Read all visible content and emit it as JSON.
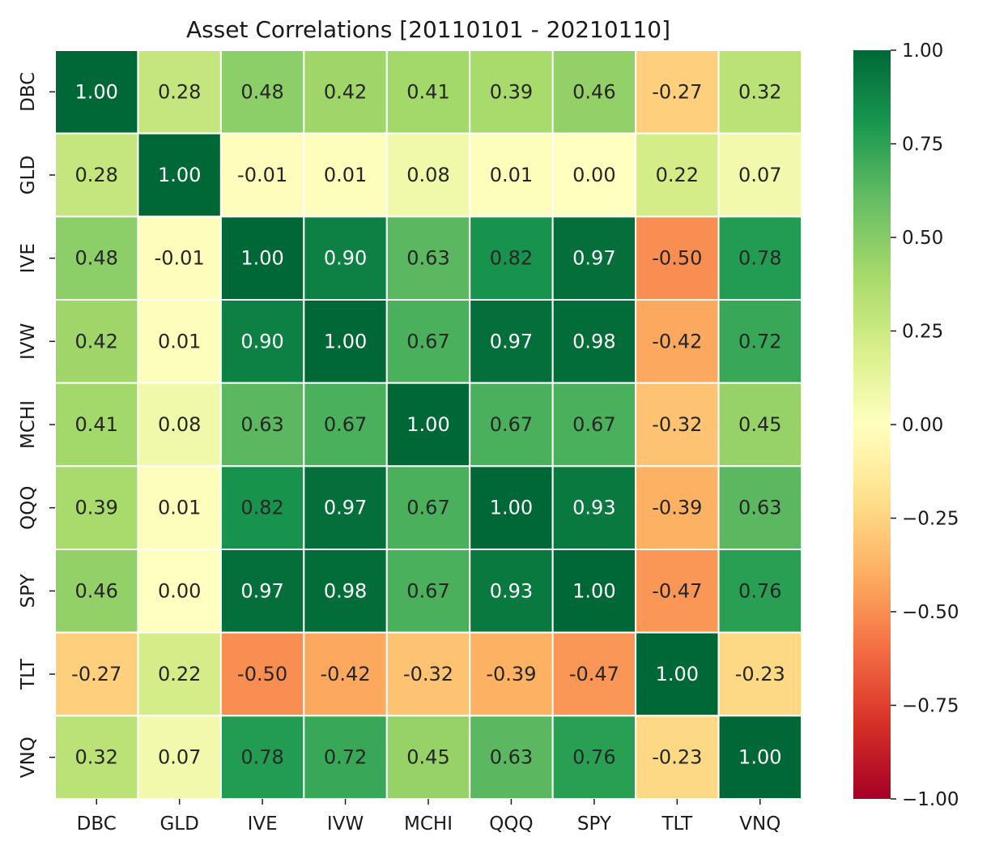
{
  "chart_data": {
    "type": "heatmap",
    "title": "Asset Correlations [20110101 - 20210110]",
    "x_labels": [
      "DBC",
      "GLD",
      "IVE",
      "IVW",
      "MCHI",
      "QQQ",
      "SPY",
      "TLT",
      "VNQ"
    ],
    "y_labels": [
      "DBC",
      "GLD",
      "IVE",
      "IVW",
      "MCHI",
      "QQQ",
      "SPY",
      "TLT",
      "VNQ"
    ],
    "values": [
      [
        1.0,
        0.28,
        0.48,
        0.42,
        0.41,
        0.39,
        0.46,
        -0.27,
        0.32
      ],
      [
        0.28,
        1.0,
        -0.01,
        0.01,
        0.08,
        0.01,
        0.0,
        0.22,
        0.07
      ],
      [
        0.48,
        -0.01,
        1.0,
        0.9,
        0.63,
        0.82,
        0.97,
        -0.5,
        0.78
      ],
      [
        0.42,
        0.01,
        0.9,
        1.0,
        0.67,
        0.97,
        0.98,
        -0.42,
        0.72
      ],
      [
        0.41,
        0.08,
        0.63,
        0.67,
        1.0,
        0.67,
        0.67,
        -0.32,
        0.45
      ],
      [
        0.39,
        0.01,
        0.82,
        0.97,
        0.67,
        1.0,
        0.93,
        -0.39,
        0.63
      ],
      [
        0.46,
        0.0,
        0.97,
        0.98,
        0.67,
        0.93,
        1.0,
        -0.47,
        0.76
      ],
      [
        -0.27,
        0.22,
        -0.5,
        -0.42,
        -0.32,
        -0.39,
        -0.47,
        1.0,
        -0.23
      ],
      [
        0.32,
        0.07,
        0.78,
        0.72,
        0.45,
        0.63,
        0.76,
        -0.23,
        1.0
      ]
    ],
    "value_format": "2 decimals",
    "colormap": "RdYlGn",
    "vmin": -1.0,
    "vmax": 1.0,
    "colorbar": {
      "ticks": [
        1.0,
        0.75,
        0.5,
        0.25,
        0.0,
        -0.25,
        -0.5,
        -0.75,
        -1.0
      ],
      "tick_labels": [
        "1.00",
        "0.75",
        "0.50",
        "0.25",
        "0.00",
        "−0.25",
        "−0.50",
        "−0.75",
        "−1.00"
      ],
      "placement": "right"
    },
    "cell_border_color": "#ffffff"
  }
}
